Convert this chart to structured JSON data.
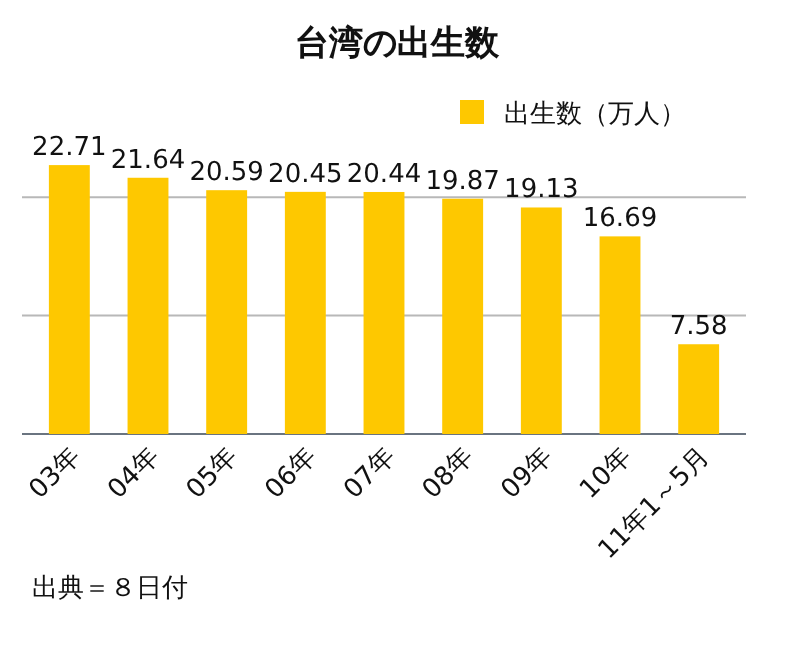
{
  "chart_data": {
    "type": "bar",
    "title": "台湾の出生数",
    "categories": [
      "03年",
      "04年",
      "05年",
      "06年",
      "07年",
      "08年",
      "09年",
      "10年",
      "11年1～5月"
    ],
    "series": [
      {
        "name": "出生数（万人）",
        "color": "#fec800",
        "values": [
          22.71,
          21.64,
          20.59,
          20.45,
          20.44,
          19.87,
          19.13,
          16.69,
          7.58
        ]
      }
    ],
    "ref_lines": [
      {
        "axis": "y",
        "value": 10,
        "color": "#b8b8b8"
      },
      {
        "axis": "y",
        "value": 20,
        "color": "#b8b8b8"
      }
    ],
    "legend": "top right",
    "data_labels": true,
    "annotations": [
      "出典＝８日付"
    ]
  }
}
